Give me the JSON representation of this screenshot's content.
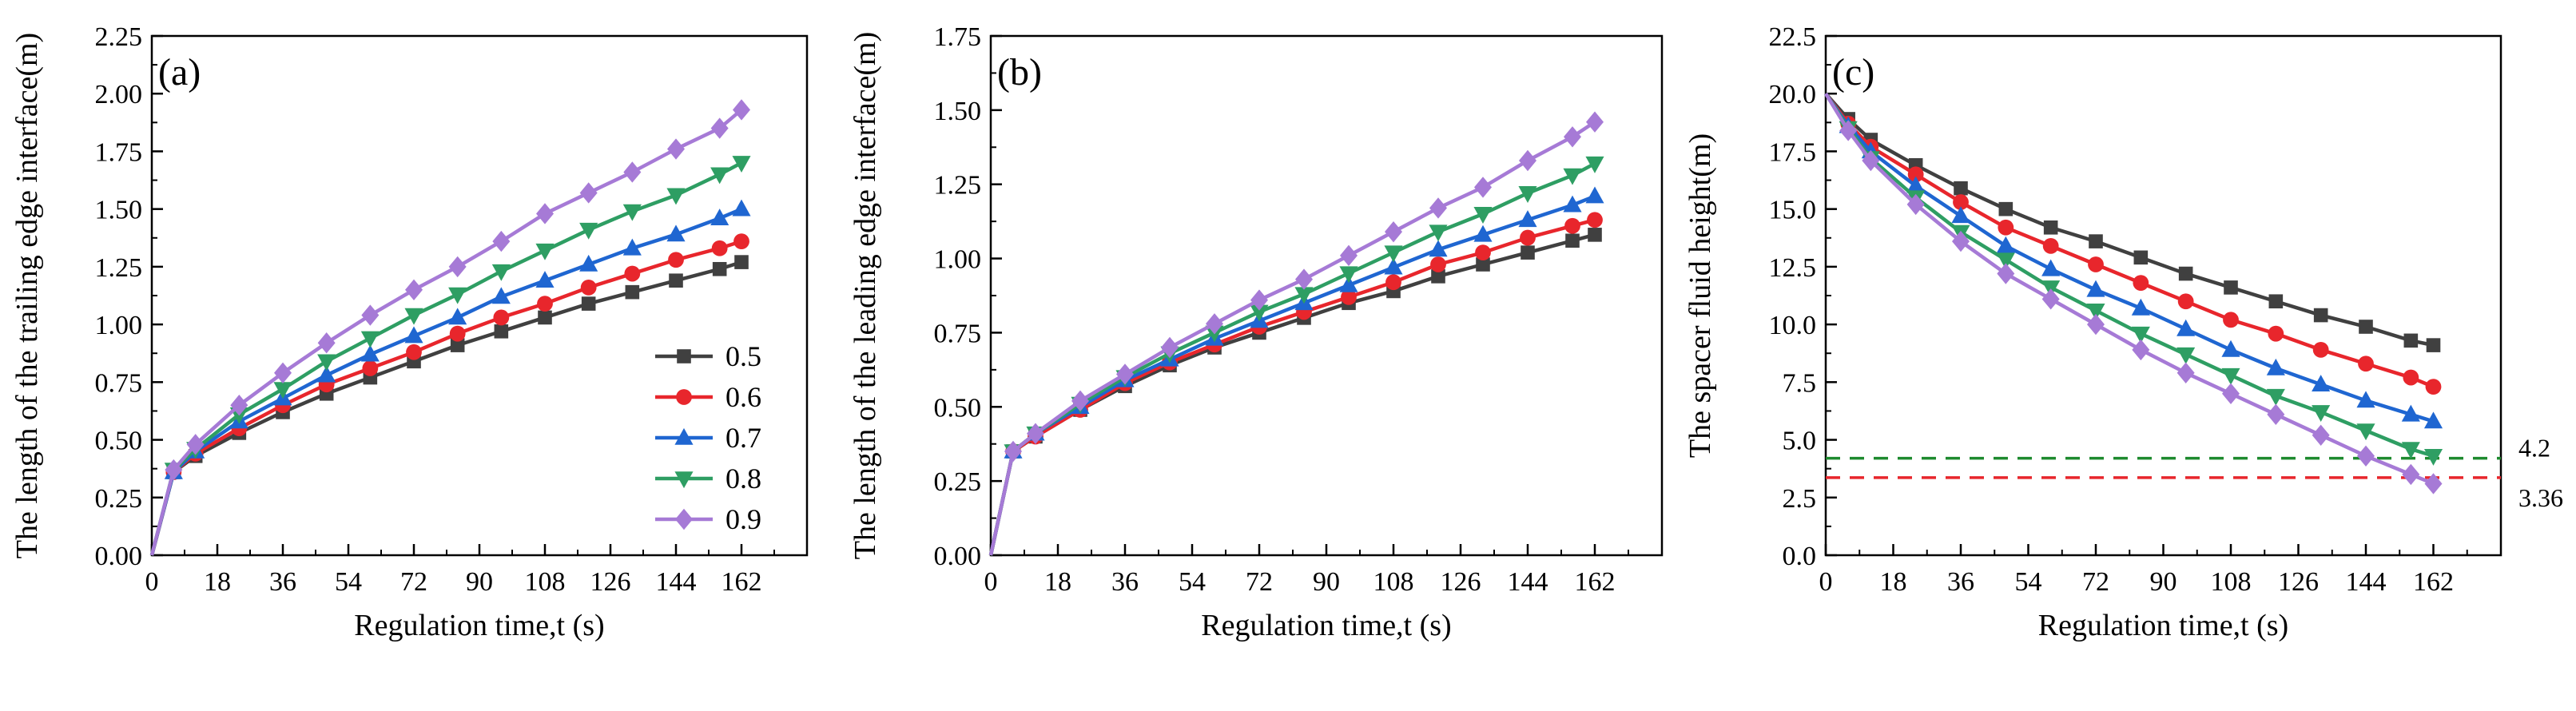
{
  "chart_data": [
    {
      "type": "line",
      "panel_label": "(a)",
      "xlabel": "Regulation time,t (s)",
      "ylabel": "The length of the trailing edge interface(m)",
      "xlim": [
        0,
        180
      ],
      "ylim": [
        0,
        2.25
      ],
      "xticks": [
        "0",
        "18",
        "36",
        "54",
        "72",
        "90",
        "108",
        "126",
        "144",
        "162"
      ],
      "yticks": [
        "0.00",
        "0.25",
        "0.50",
        "0.75",
        "1.00",
        "1.25",
        "1.50",
        "1.75",
        "2.00",
        "2.25"
      ],
      "x": [
        0,
        6,
        12,
        24,
        36,
        48,
        60,
        72,
        84,
        96,
        108,
        120,
        132,
        144,
        156,
        162
      ],
      "legend": {
        "position": "right-middle"
      },
      "series": [
        {
          "name": "0.5",
          "color": "#404040",
          "marker": "square",
          "values": [
            0.0,
            0.36,
            0.43,
            0.53,
            0.62,
            0.7,
            0.77,
            0.84,
            0.91,
            0.97,
            1.03,
            1.09,
            1.14,
            1.19,
            1.24,
            1.27
          ]
        },
        {
          "name": "0.6",
          "color": "#e8262c",
          "marker": "circle",
          "values": [
            0.0,
            0.36,
            0.44,
            0.55,
            0.65,
            0.74,
            0.81,
            0.88,
            0.96,
            1.03,
            1.09,
            1.16,
            1.22,
            1.28,
            1.33,
            1.36
          ]
        },
        {
          "name": "0.7",
          "color": "#1f66d1",
          "marker": "triangle-up",
          "values": [
            0.0,
            0.36,
            0.45,
            0.58,
            0.68,
            0.78,
            0.87,
            0.95,
            1.03,
            1.12,
            1.19,
            1.26,
            1.33,
            1.39,
            1.46,
            1.5
          ]
        },
        {
          "name": "0.8",
          "color": "#2e9e63",
          "marker": "triangle-down",
          "values": [
            0.0,
            0.37,
            0.46,
            0.61,
            0.72,
            0.84,
            0.94,
            1.04,
            1.13,
            1.23,
            1.32,
            1.41,
            1.49,
            1.56,
            1.65,
            1.7
          ]
        },
        {
          "name": "0.9",
          "color": "#a67ad6",
          "marker": "diamond",
          "values": [
            0.0,
            0.37,
            0.48,
            0.65,
            0.79,
            0.92,
            1.04,
            1.15,
            1.25,
            1.36,
            1.48,
            1.57,
            1.66,
            1.76,
            1.85,
            1.93
          ]
        }
      ]
    },
    {
      "type": "line",
      "panel_label": "(b)",
      "xlabel": "Regulation time,t (s)",
      "ylabel": "The length of the leading edge interface(m)",
      "xlim": [
        0,
        180
      ],
      "ylim": [
        0,
        1.75
      ],
      "xticks": [
        "0",
        "18",
        "36",
        "54",
        "72",
        "90",
        "108",
        "126",
        "144",
        "162"
      ],
      "yticks": [
        "0.00",
        "0.25",
        "0.50",
        "0.75",
        "1.00",
        "1.25",
        "1.50",
        "1.75"
      ],
      "x": [
        0,
        6,
        12,
        24,
        36,
        48,
        60,
        72,
        84,
        96,
        108,
        120,
        132,
        144,
        156,
        162
      ],
      "series": [
        {
          "name": "0.5",
          "color": "#404040",
          "marker": "square",
          "values": [
            0.0,
            0.35,
            0.4,
            0.49,
            0.57,
            0.64,
            0.7,
            0.75,
            0.8,
            0.85,
            0.89,
            0.94,
            0.98,
            1.02,
            1.06,
            1.08
          ]
        },
        {
          "name": "0.6",
          "color": "#e8262c",
          "marker": "circle",
          "values": [
            0.0,
            0.35,
            0.4,
            0.49,
            0.58,
            0.65,
            0.71,
            0.77,
            0.82,
            0.87,
            0.92,
            0.98,
            1.02,
            1.07,
            1.11,
            1.13
          ]
        },
        {
          "name": "0.7",
          "color": "#1f66d1",
          "marker": "triangle-up",
          "values": [
            0.0,
            0.35,
            0.41,
            0.5,
            0.59,
            0.66,
            0.73,
            0.79,
            0.85,
            0.91,
            0.97,
            1.03,
            1.08,
            1.13,
            1.18,
            1.21
          ]
        },
        {
          "name": "0.8",
          "color": "#2e9e63",
          "marker": "triangle-down",
          "values": [
            0.0,
            0.35,
            0.41,
            0.51,
            0.6,
            0.68,
            0.75,
            0.82,
            0.88,
            0.95,
            1.02,
            1.09,
            1.15,
            1.22,
            1.28,
            1.32
          ]
        },
        {
          "name": "0.9",
          "color": "#a67ad6",
          "marker": "diamond",
          "values": [
            0.0,
            0.35,
            0.41,
            0.52,
            0.61,
            0.7,
            0.78,
            0.86,
            0.93,
            1.01,
            1.09,
            1.17,
            1.24,
            1.33,
            1.41,
            1.46
          ]
        }
      ]
    },
    {
      "type": "line",
      "panel_label": "(c)",
      "xlabel": "Regulation time,t (s)",
      "ylabel": "The spacer fluid height(m)",
      "xlim": [
        0,
        180
      ],
      "ylim": [
        0,
        22.5
      ],
      "xticks": [
        "0",
        "18",
        "36",
        "54",
        "72",
        "90",
        "108",
        "126",
        "144",
        "162"
      ],
      "yticks": [
        "0.0",
        "2.5",
        "5.0",
        "7.5",
        "10.0",
        "12.5",
        "15.0",
        "17.5",
        "20.0",
        "22.5"
      ],
      "x": [
        0,
        6,
        12,
        24,
        36,
        48,
        60,
        72,
        84,
        96,
        108,
        120,
        132,
        144,
        156,
        162
      ],
      "reference_lines": [
        {
          "value": 4.2,
          "label": "4.2",
          "color": "#1e8a2e",
          "style": "dashed"
        },
        {
          "value": 3.36,
          "label": "3.36",
          "color": "#e8262c",
          "style": "dashed"
        }
      ],
      "series": [
        {
          "name": "0.5",
          "color": "#404040",
          "marker": "square",
          "values": [
            20.0,
            18.9,
            18.0,
            16.9,
            15.9,
            15.0,
            14.2,
            13.6,
            12.9,
            12.2,
            11.6,
            11.0,
            10.4,
            9.9,
            9.3,
            9.1
          ]
        },
        {
          "name": "0.6",
          "color": "#e8262c",
          "marker": "circle",
          "values": [
            20.0,
            18.7,
            17.7,
            16.5,
            15.3,
            14.2,
            13.4,
            12.6,
            11.8,
            11.0,
            10.2,
            9.6,
            8.9,
            8.3,
            7.7,
            7.3
          ]
        },
        {
          "name": "0.7",
          "color": "#1f66d1",
          "marker": "triangle-up",
          "values": [
            20.0,
            18.6,
            17.5,
            16.0,
            14.7,
            13.4,
            12.4,
            11.5,
            10.7,
            9.8,
            8.9,
            8.1,
            7.4,
            6.7,
            6.1,
            5.8
          ]
        },
        {
          "name": "0.8",
          "color": "#2e9e63",
          "marker": "triangle-down",
          "values": [
            20.0,
            18.5,
            17.2,
            15.5,
            14.0,
            12.8,
            11.6,
            10.6,
            9.6,
            8.7,
            7.8,
            6.9,
            6.2,
            5.4,
            4.6,
            4.3
          ]
        },
        {
          "name": "0.9",
          "color": "#a67ad6",
          "marker": "diamond",
          "values": [
            20.0,
            18.4,
            17.1,
            15.2,
            13.6,
            12.2,
            11.1,
            10.0,
            8.9,
            7.9,
            7.0,
            6.1,
            5.2,
            4.3,
            3.5,
            3.1
          ]
        }
      ]
    }
  ]
}
